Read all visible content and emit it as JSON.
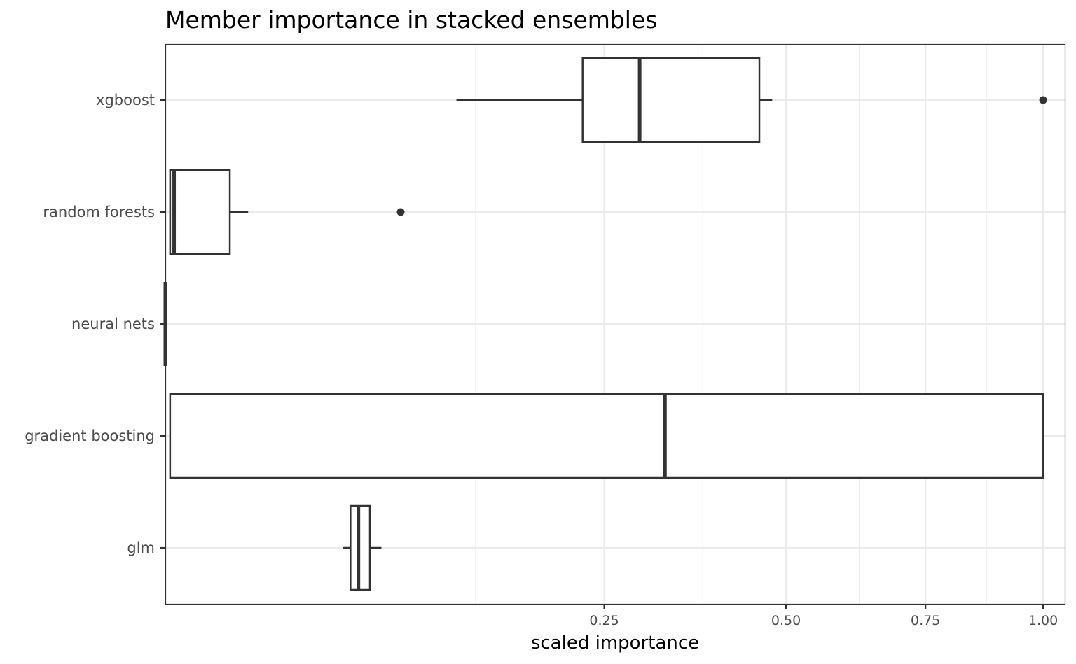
{
  "chart_data": {
    "type": "boxplot",
    "title": "Member importance in stacked ensembles",
    "xlabel": "scaled importance",
    "ylabel": "",
    "x_scale": "sqrt",
    "xlim": [
      0,
      1.05
    ],
    "x_ticks": [
      0.25,
      0.5,
      0.75,
      1.0
    ],
    "x_tick_labels": [
      "0.25",
      "0.50",
      "0.75",
      "1.00"
    ],
    "x_minor_ticks": [
      0.125,
      0.375,
      0.625,
      0.875
    ],
    "grid": true,
    "categories": [
      "xgboost",
      "random forests",
      "neural nets",
      "gradient boosting",
      "glm"
    ],
    "boxes": [
      {
        "category": "xgboost",
        "whisker_low": 0.11,
        "q1": 0.226,
        "median": 0.292,
        "q3": 0.458,
        "whisker_high": 0.478,
        "outliers": [
          1.0
        ]
      },
      {
        "category": "random forests",
        "whisker_low": 3e-05,
        "q1": 3e-05,
        "median": 0.0001,
        "q3": 0.0054,
        "whisker_high": 0.0089,
        "outliers": [
          0.0719
        ]
      },
      {
        "category": "neural nets",
        "whisker_low": 0.0,
        "q1": 0.0,
        "median": 0.0,
        "q3": 0.0,
        "whisker_high": 0.0,
        "outliers": []
      },
      {
        "category": "gradient boosting",
        "whisker_low": 3e-05,
        "q1": 3e-05,
        "median": 0.324,
        "q3": 1.0,
        "whisker_high": 1.0,
        "outliers": []
      },
      {
        "category": "glm",
        "whisker_low": 0.0408,
        "q1": 0.0445,
        "median": 0.0484,
        "q3": 0.0543,
        "whisker_high": 0.0606,
        "outliers": []
      }
    ]
  },
  "colors": {
    "box_stroke": "#333333",
    "box_fill": "#ffffff",
    "grid": "#ebebeb",
    "panel_border": "#333333"
  }
}
